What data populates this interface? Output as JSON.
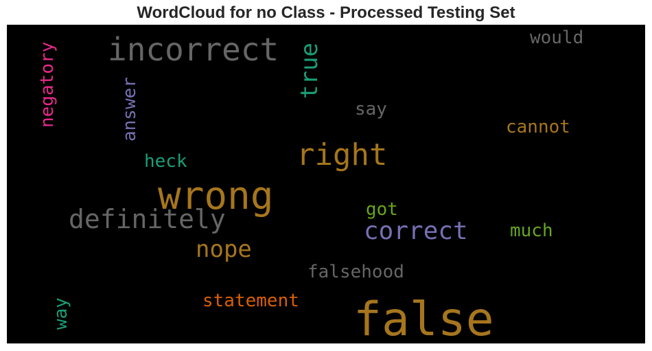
{
  "chart_data": {
    "type": "wordcloud",
    "title": "WordCloud for no Class - Processed Testing Set",
    "background": "#000000",
    "words": [
      {
        "text": "false",
        "color": "#a6761d",
        "rotated": false
      },
      {
        "text": "wrong",
        "color": "#a6761d",
        "rotated": false
      },
      {
        "text": "incorrect",
        "color": "#666666",
        "rotated": false
      },
      {
        "text": "right",
        "color": "#a6761d",
        "rotated": false
      },
      {
        "text": "definitely",
        "color": "#666666",
        "rotated": false
      },
      {
        "text": "correct",
        "color": "#7570b3",
        "rotated": false
      },
      {
        "text": "true",
        "color": "#1b9e77",
        "rotated": true
      },
      {
        "text": "nope",
        "color": "#a6761d",
        "rotated": false
      },
      {
        "text": "negatory",
        "color": "#e7298a",
        "rotated": true
      },
      {
        "text": "answer",
        "color": "#7570b3",
        "rotated": true
      },
      {
        "text": "statement",
        "color": "#d95f02",
        "rotated": false
      },
      {
        "text": "falsehood",
        "color": "#666666",
        "rotated": false
      },
      {
        "text": "cannot",
        "color": "#a6761d",
        "rotated": false
      },
      {
        "text": "would",
        "color": "#666666",
        "rotated": false
      },
      {
        "text": "much",
        "color": "#66a61e",
        "rotated": false
      },
      {
        "text": "heck",
        "color": "#1b9e77",
        "rotated": false
      },
      {
        "text": "say",
        "color": "#666666",
        "rotated": false
      },
      {
        "text": "got",
        "color": "#66a61e",
        "rotated": false
      },
      {
        "text": "way",
        "color": "#1b9e77",
        "rotated": true
      }
    ]
  }
}
